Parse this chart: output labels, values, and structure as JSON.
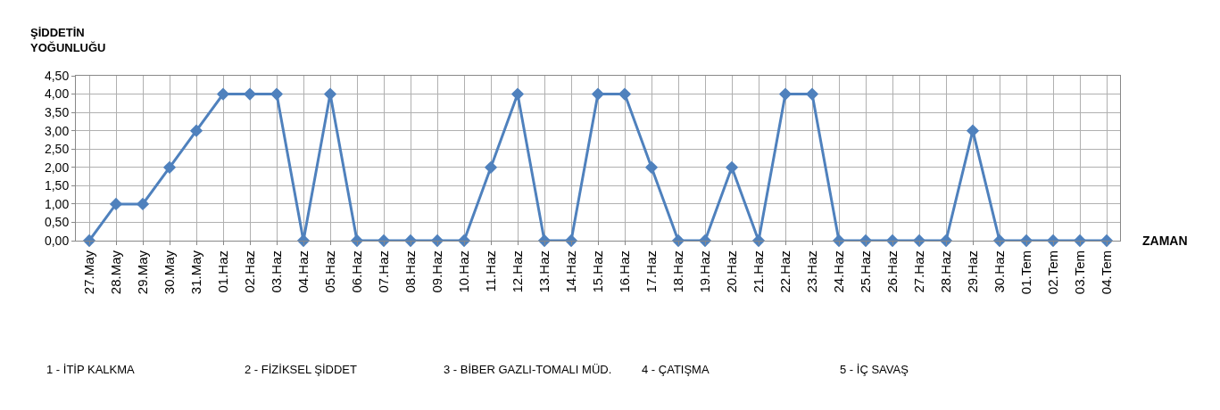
{
  "chart_data": {
    "type": "line",
    "ylabel": "ŞİDDETİN YOĞUNLUĞU",
    "xlabel": "ZAMAN",
    "categories": [
      "27.May",
      "28.May",
      "29.May",
      "30.May",
      "31.May",
      "01.Haz",
      "02.Haz",
      "03.Haz",
      "04.Haz",
      "05.Haz",
      "06.Haz",
      "07.Haz",
      "08.Haz",
      "09.Haz",
      "10.Haz",
      "11.Haz",
      "12.Haz",
      "13.Haz",
      "14.Haz",
      "15.Haz",
      "16.Haz",
      "17.Haz",
      "18.Haz",
      "19.Haz",
      "20.Haz",
      "21.Haz",
      "22.Haz",
      "23.Haz",
      "24.Haz",
      "25.Haz",
      "26.Haz",
      "27.Haz",
      "28.Haz",
      "29.Haz",
      "30.Haz",
      "01.Tem",
      "02.Tem",
      "03.Tem",
      "04.Tem"
    ],
    "series": [
      {
        "color": "#4f81bd",
        "values": [
          0,
          1,
          1,
          2,
          3,
          4,
          4,
          4,
          0,
          4,
          0,
          0,
          0,
          0,
          0,
          2,
          4,
          0,
          0,
          4,
          4,
          2,
          0,
          0,
          2,
          0,
          4,
          4,
          0,
          0,
          0,
          0,
          0,
          3,
          0,
          0,
          0,
          0,
          0
        ]
      }
    ],
    "ylim": [
      0,
      4.5
    ],
    "yticks": [
      {
        "value": 0,
        "label": "0,00"
      },
      {
        "value": 0.5,
        "label": "0,50"
      },
      {
        "value": 1,
        "label": "1,00"
      },
      {
        "value": 1.5,
        "label": "1,50"
      },
      {
        "value": 2,
        "label": "2,00"
      },
      {
        "value": 2.5,
        "label": "2,50"
      },
      {
        "value": 3,
        "label": "3,00"
      },
      {
        "value": 3.5,
        "label": "3,50"
      },
      {
        "value": 4,
        "label": "4,00"
      },
      {
        "value": 4.5,
        "label": "4,50"
      }
    ],
    "grid": true,
    "legend": false,
    "marker": "diamond",
    "line_style": "solid",
    "annotations": [
      "1 - İTİP KALKMA",
      "2 - FİZİKSEL ŞİDDET",
      "3 - BİBER GAZLI-TOMALI MÜD.",
      "4 - ÇATIŞMA",
      "5 - İÇ SAVAŞ"
    ]
  }
}
